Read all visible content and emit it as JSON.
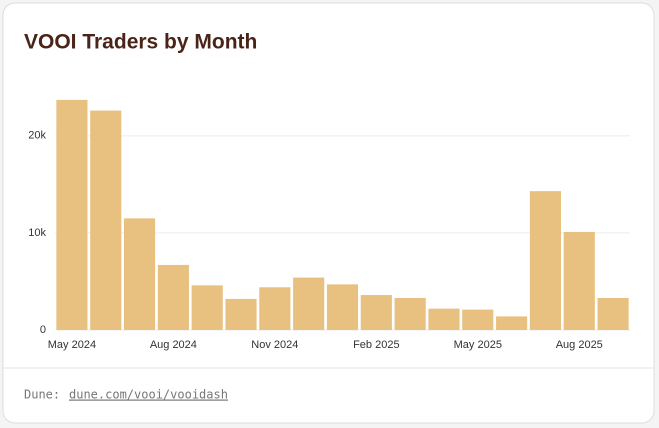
{
  "chart_data": {
    "type": "bar",
    "title": "VOOI Traders by Month",
    "categories": [
      "May 2024",
      null,
      null,
      "Aug 2024",
      null,
      null,
      "Nov 2024",
      null,
      null,
      "Feb 2025",
      null,
      null,
      "May 2025",
      null,
      null,
      "Aug 2025",
      null
    ],
    "values": [
      23700,
      22600,
      11500,
      6700,
      4600,
      3200,
      4400,
      5400,
      4700,
      3600,
      3300,
      2200,
      2100,
      1400,
      14300,
      10100,
      3300
    ],
    "color": "#e8c07f",
    "ylim": [
      0,
      24000
    ],
    "yticks": [
      0,
      {
        "value": 10000,
        "label": "10k"
      },
      {
        "value": 20000,
        "label": "20k"
      }
    ],
    "grid": true
  },
  "footer": {
    "prefix": "Dune:",
    "link": "dune.com/vooi/vooidash"
  }
}
